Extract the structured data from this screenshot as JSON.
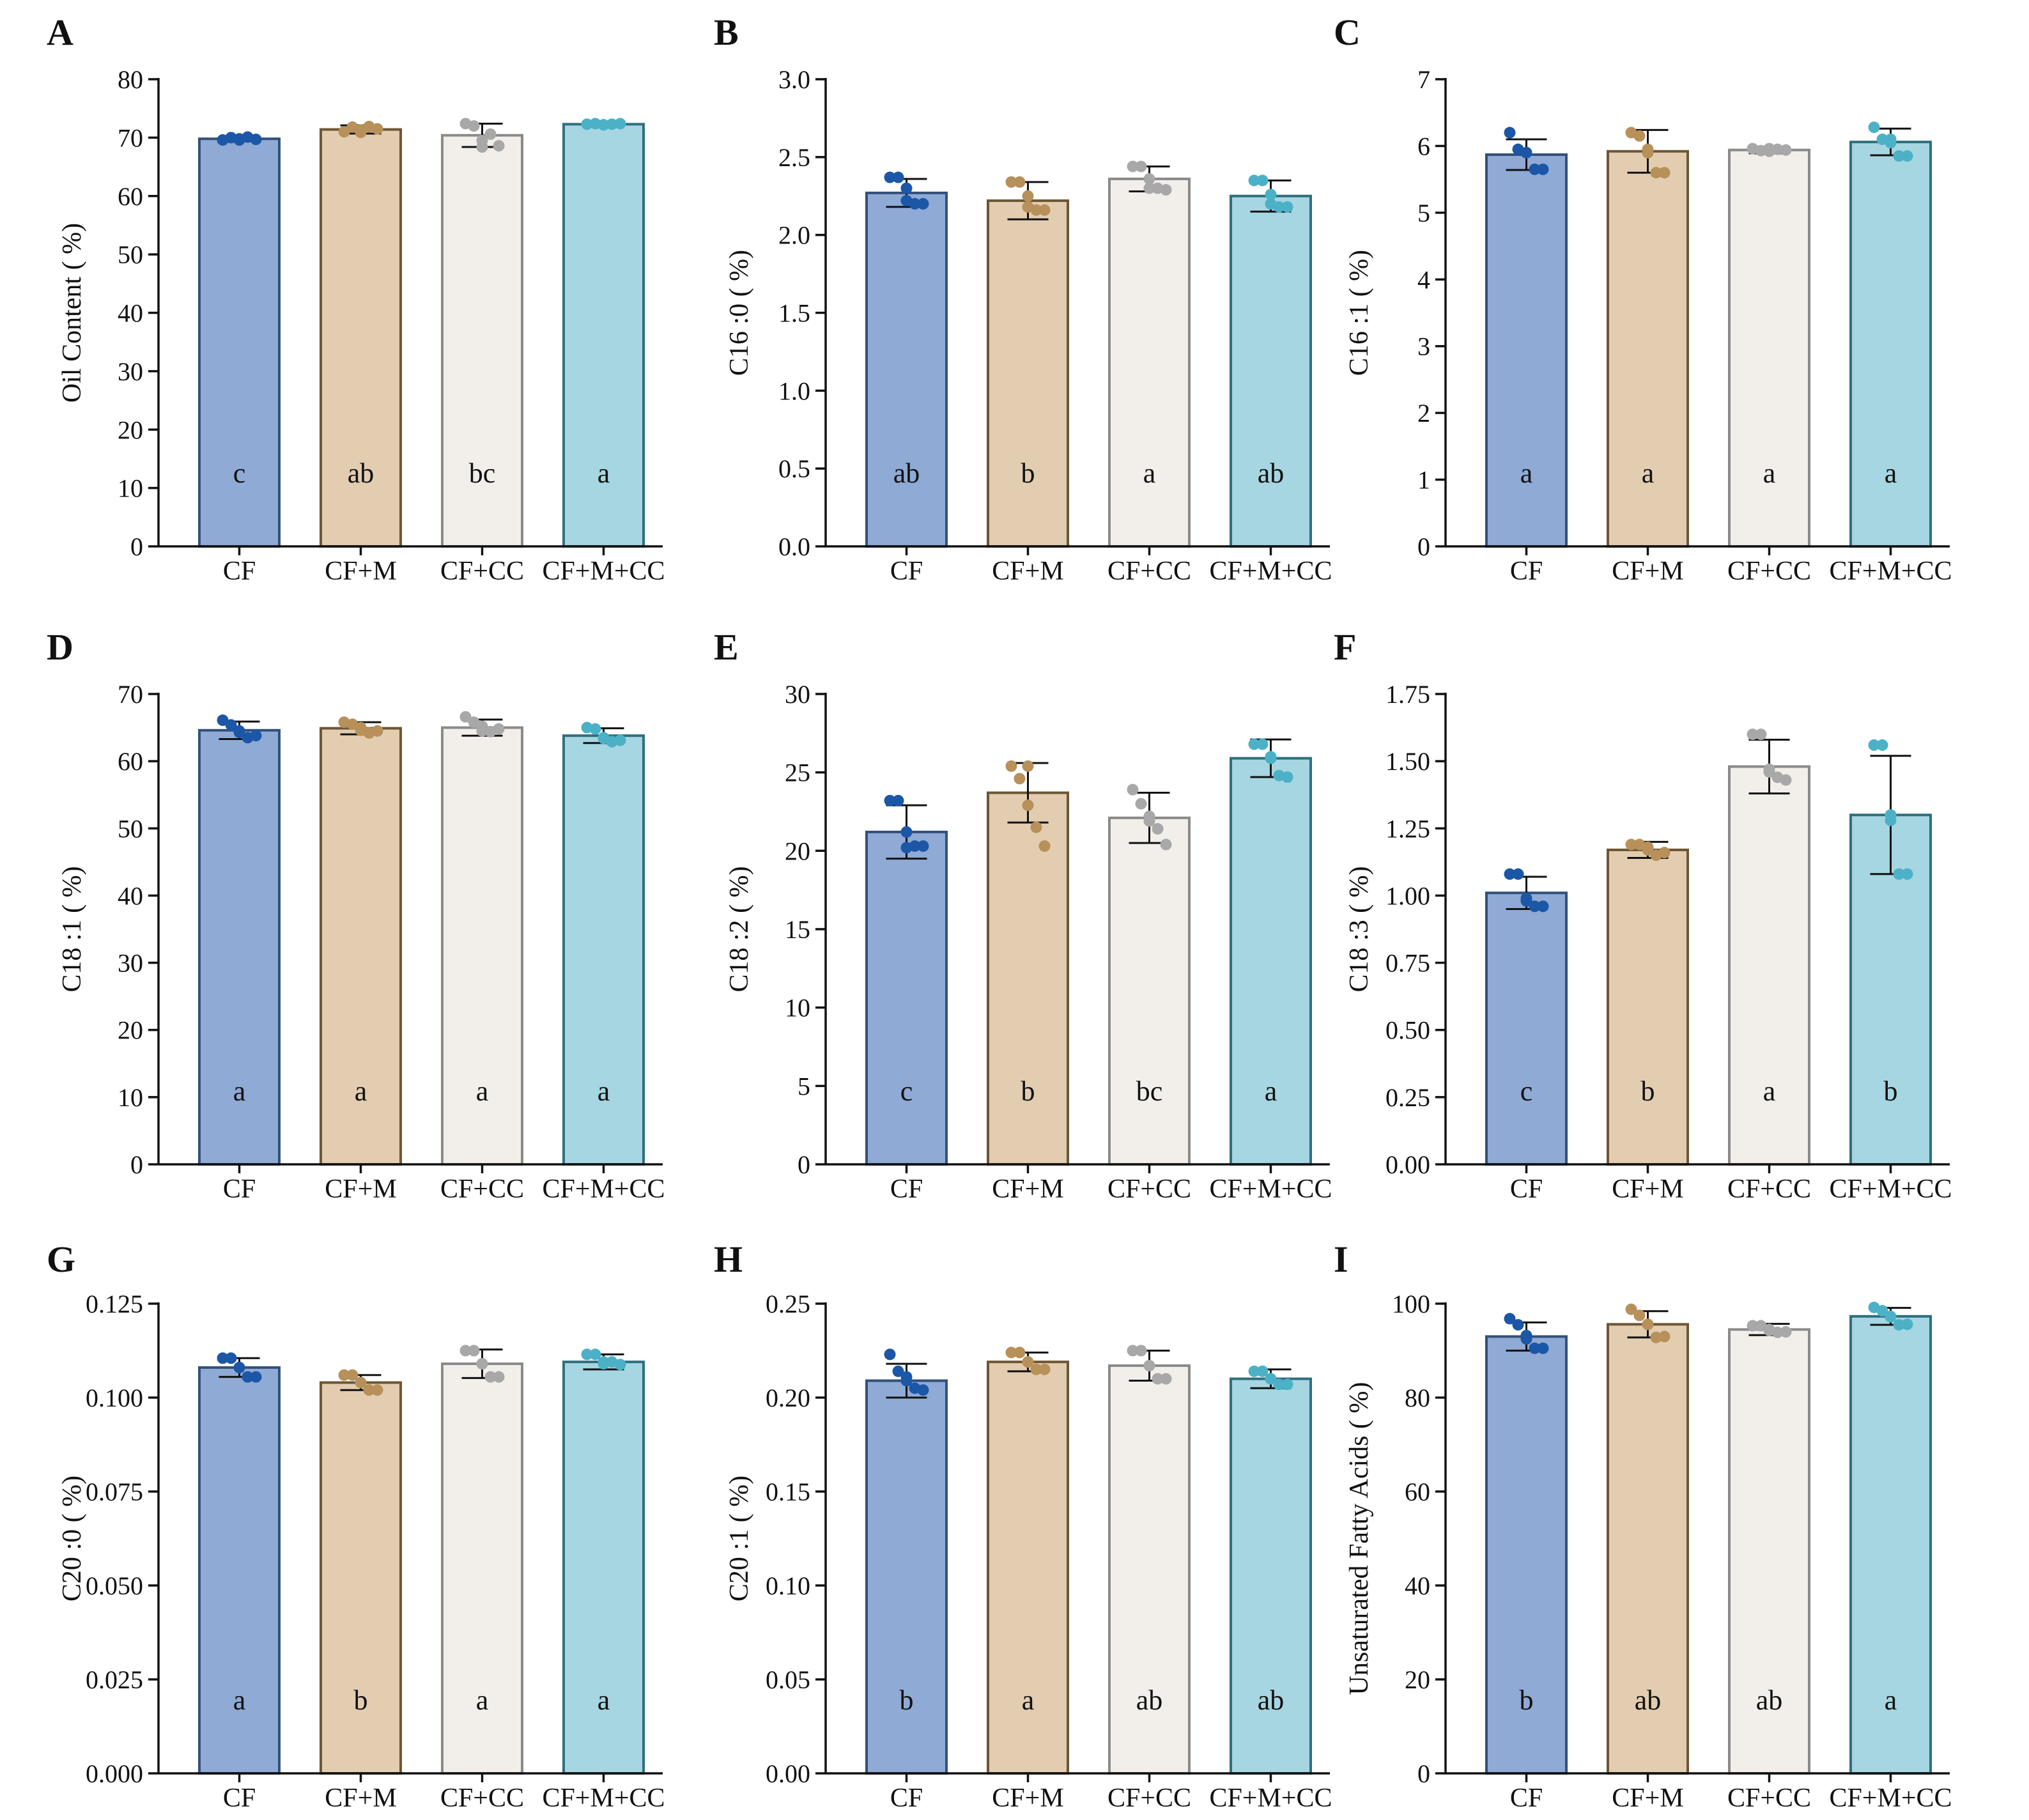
{
  "figure": {
    "groups": [
      "CF",
      "CF+M",
      "CF+CC",
      "CF+M+CC"
    ],
    "colors": {
      "bar_fill": [
        "#8eaad5",
        "#e2cdb0",
        "#f2efea",
        "#a6d6e1"
      ],
      "bar_stroke": [
        "#33507a",
        "#6e5634",
        "#8a8a8a",
        "#2e6f7e"
      ],
      "points": [
        "#1b57a6",
        "#b7905a",
        "#a8a8a8",
        "#4cb1c7"
      ],
      "axis": "#111111"
    }
  },
  "chart_data": [
    {
      "id": "A",
      "panel": "A",
      "type": "bar",
      "ylabel": "Oil Content ( %)",
      "ylim": [
        0,
        80
      ],
      "yticks": [
        0,
        10,
        20,
        30,
        40,
        50,
        60,
        70,
        80
      ],
      "ytick_labels": [
        "0",
        "10",
        "20",
        "30",
        "40",
        "50",
        "60",
        "70",
        "80"
      ],
      "categories": [
        "CF",
        "CF+M",
        "CF+CC",
        "CF+M+CC"
      ],
      "values": [
        69.8,
        71.4,
        70.4,
        72.3
      ],
      "sd": [
        0.3,
        0.7,
        2.0,
        0.2
      ],
      "points": [
        [
          69.6,
          70.0,
          69.8,
          70.1,
          69.7,
          69.6
        ],
        [
          71.0,
          71.8,
          71.3,
          71.9,
          71.5,
          70.9
        ],
        [
          72.4,
          72.0,
          69.5,
          70.6,
          68.6,
          68.4
        ],
        [
          72.3,
          72.4,
          72.2,
          72.3,
          72.4,
          72.2
        ]
      ],
      "letters": [
        "c",
        "ab",
        "bc",
        "a"
      ]
    },
    {
      "id": "B",
      "panel": "B",
      "type": "bar",
      "ylabel": "C16 :0 ( %)",
      "ylim": [
        0,
        3.0
      ],
      "yticks": [
        0,
        0.5,
        1.0,
        1.5,
        2.0,
        2.5,
        3.0
      ],
      "ytick_labels": [
        "0.0",
        "0.5",
        "1.0",
        "1.5",
        "2.0",
        "2.5",
        "3.0"
      ],
      "categories": [
        "CF",
        "CF+M",
        "CF+CC",
        "CF+M+CC"
      ],
      "values": [
        2.27,
        2.22,
        2.36,
        2.25
      ],
      "sd": [
        0.09,
        0.12,
        0.08,
        0.1
      ],
      "points": [
        [
          2.37,
          2.37,
          2.3,
          2.2,
          2.2,
          2.22
        ],
        [
          2.34,
          2.34,
          2.25,
          2.16,
          2.16,
          2.18
        ],
        [
          2.44,
          2.44,
          2.36,
          2.3,
          2.29,
          2.3
        ],
        [
          2.35,
          2.35,
          2.26,
          2.18,
          2.18,
          2.2
        ]
      ],
      "letters": [
        "ab",
        "b",
        "a",
        "ab"
      ]
    },
    {
      "id": "C",
      "panel": "C",
      "type": "bar",
      "ylabel": "C16 :1 ( %)",
      "ylim": [
        0,
        7
      ],
      "yticks": [
        0,
        1,
        2,
        3,
        4,
        5,
        6,
        7
      ],
      "ytick_labels": [
        "0",
        "1",
        "2",
        "3",
        "4",
        "5",
        "6",
        "7"
      ],
      "categories": [
        "CF",
        "CF+M",
        "CF+CC",
        "CF+M+CC"
      ],
      "values": [
        5.87,
        5.92,
        5.94,
        6.06
      ],
      "sd": [
        0.23,
        0.32,
        0.05,
        0.2
      ],
      "points": [
        [
          6.2,
          5.95,
          5.9,
          5.65,
          5.65,
          5.9
        ],
        [
          6.2,
          6.15,
          5.9,
          5.6,
          5.6,
          5.95
        ],
        [
          5.96,
          5.93,
          5.92,
          5.95,
          5.94,
          5.96
        ],
        [
          6.28,
          6.1,
          6.05,
          5.85,
          5.85,
          6.1
        ]
      ],
      "letters": [
        "a",
        "a",
        "a",
        "a"
      ]
    },
    {
      "id": "D",
      "panel": "D",
      "type": "bar",
      "ylabel": "C18 :1 ( %)",
      "ylim": [
        0,
        70
      ],
      "yticks": [
        0,
        10,
        20,
        30,
        40,
        50,
        60,
        70
      ],
      "ytick_labels": [
        "0",
        "10",
        "20",
        "30",
        "40",
        "50",
        "60",
        "70"
      ],
      "categories": [
        "CF",
        "CF+M",
        "CF+CC",
        "CF+M+CC"
      ],
      "values": [
        64.6,
        64.9,
        65.0,
        63.8
      ],
      "sd": [
        1.3,
        0.9,
        1.2,
        1.1
      ],
      "points": [
        [
          66.1,
          65.4,
          64.5,
          63.5,
          63.8,
          64.3
        ],
        [
          65.8,
          65.5,
          64.6,
          64.2,
          64.5,
          65.0
        ],
        [
          66.6,
          65.8,
          64.5,
          64.4,
          64.8,
          65.2
        ],
        [
          65.0,
          64.8,
          63.4,
          62.9,
          63.1,
          63.5
        ]
      ],
      "letters": [
        "a",
        "a",
        "a",
        "a"
      ]
    },
    {
      "id": "E",
      "panel": "E",
      "type": "bar",
      "ylabel": "C18 :2 ( %)",
      "ylim": [
        0,
        30
      ],
      "yticks": [
        0,
        5,
        10,
        15,
        20,
        25,
        30
      ],
      "ytick_labels": [
        "0",
        "5",
        "10",
        "15",
        "20",
        "25",
        "30"
      ],
      "categories": [
        "CF",
        "CF+M",
        "CF+CC",
        "CF+M+CC"
      ],
      "values": [
        21.2,
        23.7,
        22.1,
        25.9
      ],
      "sd": [
        1.7,
        1.9,
        1.6,
        1.2
      ],
      "points": [
        [
          23.2,
          23.2,
          21.2,
          20.3,
          20.3,
          20.2
        ],
        [
          25.4,
          24.6,
          22.9,
          21.5,
          20.3,
          25.4
        ],
        [
          23.9,
          23.0,
          22.2,
          21.4,
          20.4,
          21.9
        ],
        [
          26.8,
          26.8,
          25.9,
          24.8,
          24.7,
          26.0
        ]
      ],
      "letters": [
        "c",
        "b",
        "bc",
        "a"
      ]
    },
    {
      "id": "F",
      "panel": "F",
      "type": "bar",
      "ylabel": "C18 :3 ( %)",
      "ylim": [
        0,
        1.75
      ],
      "yticks": [
        0,
        0.25,
        0.5,
        0.75,
        1.0,
        1.25,
        1.5,
        1.75
      ],
      "ytick_labels": [
        "0.00",
        "0.25",
        "0.50",
        "0.75",
        "1.00",
        "1.25",
        "1.50",
        "1.75"
      ],
      "categories": [
        "CF",
        "CF+M",
        "CF+CC",
        "CF+M+CC"
      ],
      "values": [
        1.01,
        1.17,
        1.48,
        1.3
      ],
      "sd": [
        0.06,
        0.03,
        0.1,
        0.22
      ],
      "points": [
        [
          1.08,
          1.08,
          0.99,
          0.96,
          0.96,
          0.98
        ],
        [
          1.19,
          1.19,
          1.17,
          1.15,
          1.16,
          1.18
        ],
        [
          1.6,
          1.6,
          1.47,
          1.44,
          1.43,
          1.46
        ],
        [
          1.56,
          1.56,
          1.3,
          1.08,
          1.08,
          1.28
        ]
      ],
      "letters": [
        "c",
        "b",
        "a",
        "b"
      ]
    },
    {
      "id": "G",
      "panel": "G",
      "type": "bar",
      "ylabel": "C20 :0 ( %)",
      "ylim": [
        0,
        0.125
      ],
      "yticks": [
        0,
        0.025,
        0.05,
        0.075,
        0.1,
        0.125
      ],
      "ytick_labels": [
        "0.000",
        "0.025",
        "0.050",
        "0.075",
        "0.100",
        "0.125"
      ],
      "categories": [
        "CF",
        "CF+M",
        "CF+CC",
        "CF+M+CC"
      ],
      "values": [
        0.108,
        0.104,
        0.109,
        0.1095
      ],
      "sd": [
        0.0025,
        0.002,
        0.0038,
        0.002
      ],
      "points": [
        [
          0.1105,
          0.1105,
          0.108,
          0.1055,
          0.1055,
          0.108
        ],
        [
          0.106,
          0.106,
          0.104,
          0.102,
          0.102,
          0.104
        ],
        [
          0.1125,
          0.1125,
          0.109,
          0.1055,
          0.1055,
          0.109
        ],
        [
          0.1115,
          0.1115,
          0.109,
          0.1095,
          0.1088,
          0.1095
        ]
      ],
      "letters": [
        "a",
        "b",
        "a",
        "a"
      ]
    },
    {
      "id": "H",
      "panel": "H",
      "type": "bar",
      "ylabel": "C20 :1 ( %)",
      "ylim": [
        0,
        0.25
      ],
      "yticks": [
        0,
        0.05,
        0.1,
        0.15,
        0.2,
        0.25
      ],
      "ytick_labels": [
        "0.00",
        "0.05",
        "0.10",
        "0.15",
        "0.20",
        "0.25"
      ],
      "categories": [
        "CF",
        "CF+M",
        "CF+CC",
        "CF+M+CC"
      ],
      "values": [
        0.209,
        0.219,
        0.217,
        0.21
      ],
      "sd": [
        0.009,
        0.005,
        0.008,
        0.005
      ],
      "points": [
        [
          0.223,
          0.214,
          0.211,
          0.205,
          0.204,
          0.209
        ],
        [
          0.224,
          0.224,
          0.219,
          0.215,
          0.215,
          0.219
        ],
        [
          0.225,
          0.225,
          0.217,
          0.21,
          0.21,
          0.217
        ],
        [
          0.214,
          0.214,
          0.21,
          0.207,
          0.207,
          0.21
        ]
      ],
      "letters": [
        "b",
        "a",
        "ab",
        "ab"
      ]
    },
    {
      "id": "I",
      "panel": "I",
      "type": "bar",
      "ylabel": "Unsaturated Fatty Acids ( %)",
      "ylim": [
        0,
        100
      ],
      "yticks": [
        0,
        20,
        40,
        60,
        80,
        100
      ],
      "ytick_labels": [
        "0",
        "20",
        "40",
        "60",
        "80",
        "100"
      ],
      "categories": [
        "CF",
        "CF+M",
        "CF+CC",
        "CF+M+CC"
      ],
      "values": [
        93.0,
        95.6,
        94.5,
        97.3
      ],
      "sd": [
        3.0,
        2.8,
        1.2,
        1.8
      ],
      "points": [
        [
          96.8,
          95.5,
          93.2,
          90.5,
          90.5,
          92.5
        ],
        [
          98.8,
          97.5,
          95.6,
          92.8,
          93.0,
          95.6
        ],
        [
          95.3,
          95.3,
          94.3,
          93.9,
          94.0,
          94.5
        ],
        [
          99.2,
          98.5,
          97.2,
          95.5,
          95.6,
          97.3
        ]
      ],
      "letters": [
        "b",
        "ab",
        "ab",
        "a"
      ]
    }
  ]
}
